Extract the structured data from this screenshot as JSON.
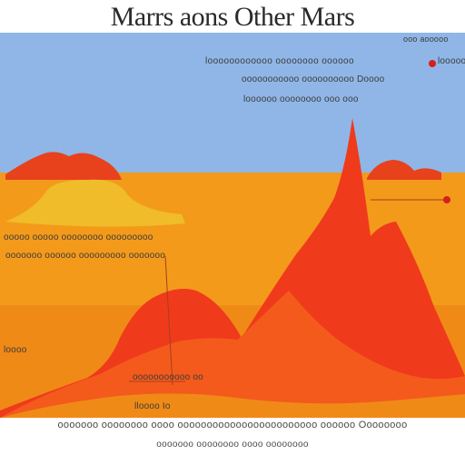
{
  "title": "Marrs aons Other Mars",
  "colors": {
    "sky": "#8fb6e6",
    "ground": "#f39a1a",
    "ground_dark": "#ee7a12",
    "mountain": "#f03a1c",
    "mountain_inner": "#f45a1c",
    "mesa": "#f0bc2a",
    "rock": "#e8421d",
    "marker": "#d51f1f",
    "leader": "#a34020"
  },
  "labels": {
    "top_1": "ooo aooooo",
    "top_2": "loooooooooooo oooooooo oooooo",
    "top_3": "ooooooooooo oooooooooo Doooo",
    "top_4": "loooooo oooooooo ooo ooo",
    "top_5": "looooo",
    "mid_1": "ooooo ooooo oooooooo ooooooooo",
    "mid_2": "ooooooo oooooo ooooooooo ooooooo",
    "left_1": "loooo",
    "bottom_1": "ooooooooooo oo",
    "bottom_2": "lloooo Io"
  },
  "footer": {
    "line_1": "ooooooo oooooooo oooo oooooooooooooooooooooooo oooooo Oooooooo",
    "line_2": "ooooooo oooooooo oooo oooooooo"
  }
}
